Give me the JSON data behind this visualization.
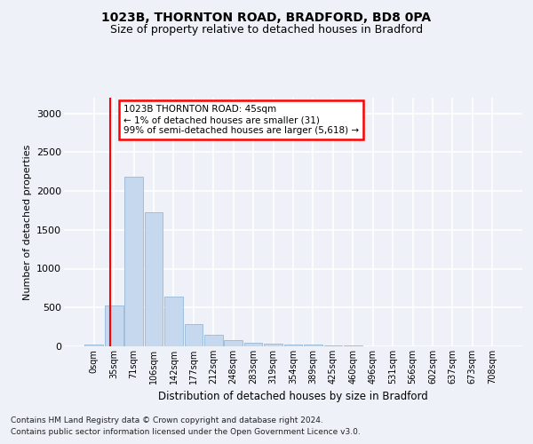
{
  "title1": "1023B, THORNTON ROAD, BRADFORD, BD8 0PA",
  "title2": "Size of property relative to detached houses in Bradford",
  "xlabel": "Distribution of detached houses by size in Bradford",
  "ylabel": "Number of detached properties",
  "bar_color": "#c5d8ed",
  "bar_edge_color": "#95b8d8",
  "bin_labels": [
    "0sqm",
    "35sqm",
    "71sqm",
    "106sqm",
    "142sqm",
    "177sqm",
    "212sqm",
    "248sqm",
    "283sqm",
    "319sqm",
    "354sqm",
    "389sqm",
    "425sqm",
    "460sqm",
    "496sqm",
    "531sqm",
    "566sqm",
    "602sqm",
    "637sqm",
    "673sqm",
    "708sqm"
  ],
  "bar_values": [
    20,
    530,
    2180,
    1720,
    635,
    285,
    150,
    75,
    45,
    35,
    25,
    20,
    15,
    8,
    5,
    3,
    2,
    2,
    1,
    1,
    0
  ],
  "annotation_text": "1023B THORNTON ROAD: 45sqm\n← 1% of detached houses are smaller (31)\n99% of semi-detached houses are larger (5,618) →",
  "annotation_box_color": "white",
  "annotation_box_edge_color": "red",
  "vline_color": "red",
  "ylim": [
    0,
    3200
  ],
  "yticks": [
    0,
    500,
    1000,
    1500,
    2000,
    2500,
    3000
  ],
  "footer1": "Contains HM Land Registry data © Crown copyright and database right 2024.",
  "footer2": "Contains public sector information licensed under the Open Government Licence v3.0.",
  "background_color": "#eef2f8",
  "grid_color": "white"
}
